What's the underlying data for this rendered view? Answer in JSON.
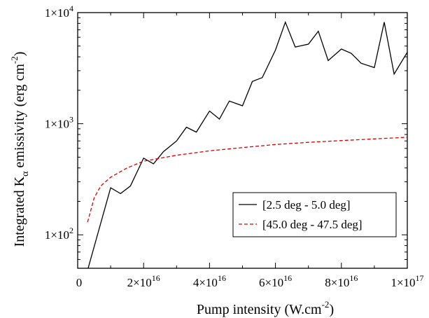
{
  "chart_data": {
    "type": "line",
    "x_label": "Pump intensity (W.cm",
    "x_label_exp": "-2",
    "x_label_close": ")",
    "y_label_pre": "Integrated K",
    "y_label_sub": "α",
    "y_label_post": " emissivity (erg cm",
    "y_label_exp": "-2",
    "y_label_close": ")",
    "xlim": [
      0,
      1e+17
    ],
    "ylim": [
      50,
      10000
    ],
    "y_scale": "log",
    "grid": false,
    "legend_position": "lower-right",
    "x_ticks": [
      {
        "value": 0,
        "mant": "0",
        "exp": ""
      },
      {
        "value": 2e+16,
        "mant": "2×10",
        "exp": "16"
      },
      {
        "value": 4e+16,
        "mant": "4×10",
        "exp": "16"
      },
      {
        "value": 6e+16,
        "mant": "6×10",
        "exp": "16"
      },
      {
        "value": 8e+16,
        "mant": "8×10",
        "exp": "16"
      },
      {
        "value": 1e+17,
        "mant": "1×10",
        "exp": "17"
      }
    ],
    "y_ticks": [
      {
        "value": 100,
        "mant": "1×10",
        "exp": "2"
      },
      {
        "value": 1000,
        "mant": "1×10",
        "exp": "3"
      },
      {
        "value": 10000,
        "mant": "1×10",
        "exp": "4"
      }
    ],
    "series": [
      {
        "name": "[2.5 deg - 5.0 deg]",
        "color": "#000000",
        "dash": "solid",
        "points": [
          [
            3000000000000000.0,
            48
          ],
          [
            1e+16,
            265
          ],
          [
            1.3e+16,
            235
          ],
          [
            1.6e+16,
            275
          ],
          [
            2e+16,
            490
          ],
          [
            2.3e+16,
            435
          ],
          [
            2.6e+16,
            560
          ],
          [
            3e+16,
            700
          ],
          [
            3.3e+16,
            930
          ],
          [
            3.6e+16,
            840
          ],
          [
            4e+16,
            1300
          ],
          [
            4.3e+16,
            1100
          ],
          [
            4.6e+16,
            1600
          ],
          [
            5e+16,
            1450
          ],
          [
            5.3e+16,
            2400
          ],
          [
            5.6e+16,
            2600
          ],
          [
            6e+16,
            4600
          ],
          [
            6.3e+16,
            8200
          ],
          [
            6.6e+16,
            4900
          ],
          [
            7e+16,
            5200
          ],
          [
            7.3e+16,
            6800
          ],
          [
            7.6e+16,
            3700
          ],
          [
            8e+16,
            4700
          ],
          [
            8.3e+16,
            4300
          ],
          [
            8.6e+16,
            3500
          ],
          [
            9e+16,
            3200
          ],
          [
            9.3e+16,
            8200
          ],
          [
            9.6e+16,
            2800
          ],
          [
            1e+17,
            4400
          ]
        ]
      },
      {
        "name": "[45.0 deg - 47.5 deg]",
        "color": "#e00000",
        "dash": "dashed",
        "points": [
          [
            3000000000000000.0,
            130
          ],
          [
            5000000000000000.0,
            215
          ],
          [
            7000000000000000.0,
            275
          ],
          [
            1e+16,
            330
          ],
          [
            1.5e+16,
            400
          ],
          [
            2e+16,
            460
          ],
          [
            3e+16,
            520
          ],
          [
            4e+16,
            570
          ],
          [
            5e+16,
            610
          ],
          [
            6e+16,
            650
          ],
          [
            7e+16,
            680
          ],
          [
            8e+16,
            705
          ],
          [
            9e+16,
            730
          ],
          [
            1e+17,
            755
          ]
        ]
      }
    ]
  }
}
